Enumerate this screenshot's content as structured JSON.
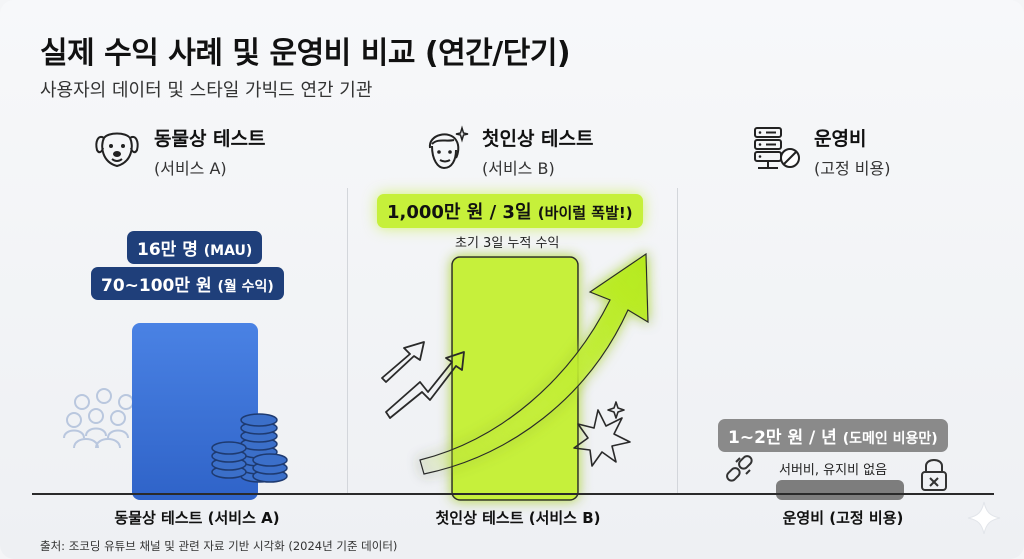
{
  "title": "실제 수익 사례 및 운영비 비교 (연간/단기)",
  "subtitle": "사용자의 데이터 및 스타일 가빅드 연간 기관",
  "columns": [
    {
      "name": "동물상 테스트",
      "sub": "(서비스 A)",
      "icon": "dog-face-icon"
    },
    {
      "name": "첫인상 테스트",
      "sub": "(서비스 B)",
      "icon": "face-sparkle-icon"
    },
    {
      "name": "운영비",
      "sub": "(고정 비용)",
      "icon": "server-no-cost-icon"
    }
  ],
  "labels": {
    "a_users_main": "16만 명",
    "a_users_unit": "(MAU)",
    "a_revenue_main": "70~100만 원",
    "a_revenue_unit": "(월 수익)",
    "b_revenue_main": "1,000만 원 / 3일",
    "b_revenue_note": "(바이럴 폭발!)",
    "b_caption": "초기 3일 누적 수익",
    "c_cost_main": "1~2만 원 / 년",
    "c_cost_note": "(도메인 비용만)",
    "c_caption": "서버비, 유지비 없음"
  },
  "source": "출처: 조코딩 유튜브 채널 및 관련 자료 기반 시각화 (2024년 기준 데이터)",
  "colors": {
    "bar_a": "#3a72d8",
    "bar_b": "#c6f03a",
    "bar_c": "#7d7d7d",
    "pill_navy": "#1f3f7a",
    "pill_gray": "#8a8a8a"
  },
  "chart_data": {
    "type": "bar",
    "title": "실제 수익 사례 및 운영비 비교 (연간/단기)",
    "subtitle": "사용자의 데이터 및 스타일 가빅드 연간 기관",
    "categories": [
      "동물상 테스트 (서비스 A)",
      "첫인상 테스트 (서비스 B)",
      "운영비 (고정 비용)"
    ],
    "relative_heights": [
      0.62,
      0.86,
      0.05
    ],
    "xlabel": "",
    "ylabel": "",
    "grid": false,
    "legend": "none"
  }
}
